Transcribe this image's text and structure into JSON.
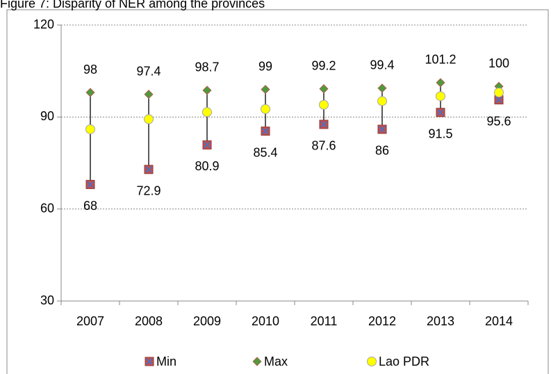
{
  "chart_data": {
    "type": "line",
    "title": "Figure 7: Disparity of NER among the provinces",
    "categories": [
      "2007",
      "2008",
      "2009",
      "2010",
      "2011",
      "2012",
      "2013",
      "2014"
    ],
    "series": [
      {
        "name": "Min",
        "color": "#c0504d",
        "marker": "square-x",
        "values": [
          68,
          72.9,
          80.9,
          85.4,
          87.6,
          86,
          91.5,
          95.6
        ],
        "labels": "below"
      },
      {
        "name": "Max",
        "color": "#4f9a3c",
        "marker": "diamond",
        "values": [
          98,
          97.4,
          98.7,
          99,
          99.2,
          99.4,
          101.2,
          100
        ],
        "labels": "above"
      },
      {
        "name": "Lao PDR",
        "color": "#ffff00",
        "marker": "circle",
        "values": [
          86,
          89.3,
          91.6,
          92.6,
          94,
          95.2,
          96.8,
          98
        ]
      }
    ],
    "high_low_lines": true,
    "ylim": [
      30,
      120
    ],
    "yticks": [
      30,
      60,
      90,
      120
    ],
    "grid": true,
    "legend": "bottom"
  }
}
